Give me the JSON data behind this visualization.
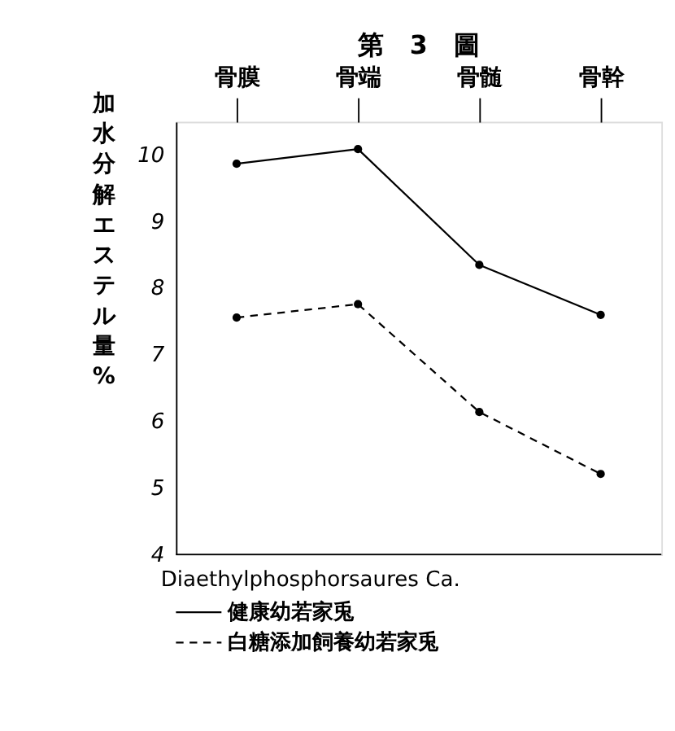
{
  "chart_data": {
    "type": "line",
    "title": "第　3　圖",
    "xlabel": "Diaethylphosphorsaures Ca.",
    "ylabel": "加水分解エステル量%",
    "categories": [
      "骨膜",
      "骨端",
      "骨髄",
      "骨幹"
    ],
    "series": [
      {
        "name": "健康幼若家兎",
        "color": "#000000",
        "line_style": "solid",
        "values": [
          9.87,
          10.09,
          8.35,
          7.6
        ]
      },
      {
        "name": "白糖添加飼養幼若家兎",
        "color": "#000000",
        "line_style": "dashed",
        "values": [
          7.56,
          7.76,
          6.14,
          5.21
        ]
      }
    ],
    "ylim": [
      4,
      10.5
    ],
    "yticks": [
      4,
      5,
      6,
      7,
      8,
      9,
      10
    ],
    "marker": "circle",
    "grid": false,
    "legend": "bottom left"
  }
}
